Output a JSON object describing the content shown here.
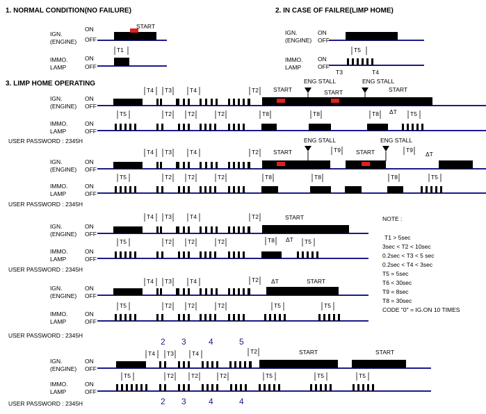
{
  "sections": [
    "1. NORMAL CONDITION(NO FAILURE)",
    "2. IN CASE OF FAILRE(LIMP HOME)",
    "3. LIMP HOME OPERATING"
  ],
  "labels": {
    "ign_line1": "IGN.",
    "ign_line2": "(ENGINE)",
    "immo_line1": "IMMO.",
    "immo_line2": "LAMP",
    "on": "ON",
    "off": "OFF",
    "start": "START",
    "eng_stall": "ENG STALL",
    "user_password": "USER PASSWORD : 2345H"
  },
  "timing": [
    "T1",
    "T2",
    "T3",
    "T4",
    "T5",
    "T8",
    "T9",
    "ΔT"
  ],
  "notes": {
    "title": "NOTE :",
    "lines": [
      "T1 > 5sec",
      "3sec < T2 < 10sec",
      "0.2sec < T3 < 5 sec",
      "0.2sec < T4 < 3sec",
      "T5 = 5sec",
      "T6 < 30sec",
      "T9 = 8sec",
      "T8 = 30sec",
      "CODE \"0\" = IG.ON 10 TIMES"
    ]
  },
  "digits": [
    "2",
    "3",
    "4",
    "5"
  ],
  "colors": {
    "wire": "#1a1a8a",
    "pulse": "#000000",
    "start_marker": "#e02020",
    "digit": "#1a1a8a"
  }
}
